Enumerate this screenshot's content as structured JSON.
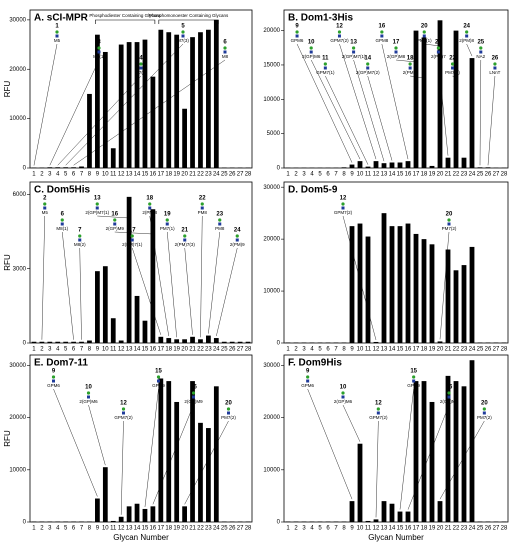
{
  "chart_data": [
    {
      "type": "bar",
      "title": "A.  sCI-MPR",
      "y_label": "RFU",
      "color": "#000000",
      "categories": [
        "1",
        "2",
        "3",
        "4",
        "5",
        "6",
        "7",
        "8",
        "9",
        "10",
        "11",
        "12",
        "13",
        "14",
        "15",
        "16",
        "17",
        "18",
        "19",
        "20",
        "21",
        "22",
        "23",
        "24",
        "25",
        "26",
        "27",
        "28"
      ],
      "values": [
        100,
        100,
        150,
        150,
        150,
        150,
        300,
        15000,
        27000,
        23500,
        4000,
        25000,
        25500,
        25500,
        26000,
        18500,
        28000,
        27500,
        27000,
        12000,
        26500,
        27500,
        28000,
        30000,
        100,
        100,
        100,
        100
      ],
      "ylim": [
        0,
        32000
      ],
      "yticks": [
        0,
        10000,
        20000,
        30000
      ],
      "notes": [
        "Phosphodiester Containing Glycans",
        "Phosphomonoester Containing Glycans"
      ],
      "annotations": [
        {
          "text": "1",
          "label": "M5"
        },
        {
          "text": "3",
          "label": "M7(1)"
        },
        {
          "text": "4",
          "label": "M7(2)"
        },
        {
          "text": "5",
          "label": "M7(3)"
        },
        {
          "text": "6",
          "label": "M8"
        }
      ]
    },
    {
      "type": "bar",
      "title": "B.  Dom1-3His",
      "color": "#000000",
      "categories": [
        "1",
        "2",
        "3",
        "4",
        "5",
        "6",
        "7",
        "8",
        "9",
        "10",
        "11",
        "12",
        "13",
        "14",
        "15",
        "16",
        "17",
        "18",
        "19",
        "20",
        "21",
        "22",
        "23",
        "24",
        "25",
        "26",
        "27",
        "28"
      ],
      "values": [
        50,
        50,
        50,
        50,
        50,
        50,
        50,
        100,
        500,
        1000,
        200,
        1000,
        700,
        800,
        800,
        1000,
        20000,
        19000,
        300,
        21500,
        1500,
        20000,
        1500,
        16000,
        100,
        100,
        50,
        50
      ],
      "ylim": [
        0,
        23000
      ],
      "yticks": [
        0,
        5000,
        10000,
        15000,
        20000
      ],
      "annotations": [
        {
          "text": "9",
          "label": "GPM6"
        },
        {
          "text": "10",
          "label": "2(GP)M6"
        },
        {
          "text": "11",
          "label": "GPM7(1)"
        },
        {
          "text": "12",
          "label": "GPM7(2)"
        },
        {
          "text": "13",
          "label": "2(GP)M7(1)"
        },
        {
          "text": "14",
          "label": "2(GP)M7(2)"
        },
        {
          "text": "16",
          "label": "GPM8"
        },
        {
          "text": "17",
          "label": "2(GP)M8"
        },
        {
          "text": "18",
          "label": "2(PM)6"
        },
        {
          "text": "20",
          "label": "PM7(1)"
        },
        {
          "text": "21",
          "label": "2(PM)7"
        },
        {
          "text": "22",
          "label": "PM7(3)"
        },
        {
          "text": "24",
          "label": "2(PM)8"
        },
        {
          "text": "25",
          "label": "NA2"
        },
        {
          "text": "26",
          "label": "LNnT"
        }
      ]
    },
    {
      "type": "bar",
      "title": "C.  Dom5His",
      "y_label": "RFU",
      "color": "#000000",
      "categories": [
        "1",
        "2",
        "3",
        "4",
        "5",
        "6",
        "7",
        "8",
        "9",
        "10",
        "11",
        "12",
        "13",
        "14",
        "15",
        "16",
        "17",
        "18",
        "19",
        "20",
        "21",
        "22",
        "23",
        "24",
        "25",
        "26",
        "27",
        "28"
      ],
      "values": [
        50,
        50,
        50,
        50,
        50,
        50,
        50,
        100,
        2900,
        3100,
        1000,
        100,
        5900,
        1900,
        900,
        5400,
        250,
        200,
        150,
        150,
        250,
        150,
        300,
        200,
        50,
        50,
        50,
        50
      ],
      "ylim": [
        0,
        6500
      ],
      "yticks": [
        0,
        3000,
        6000
      ],
      "annotations": [
        {
          "text": "2",
          "label": "M5"
        },
        {
          "text": "6",
          "label": "M8(1)"
        },
        {
          "text": "7",
          "label": "M8(2)"
        },
        {
          "text": "13",
          "label": "2(GP)M7(1)"
        },
        {
          "text": "16",
          "label": "2(GP)M9"
        },
        {
          "text": "17",
          "label": "2(PM)7(1)"
        },
        {
          "text": "18",
          "label": "2(PM)8"
        },
        {
          "text": "19",
          "label": "PM7(1)"
        },
        {
          "text": "21",
          "label": "2(PM)7(3)"
        },
        {
          "text": "22",
          "label": "PM8"
        },
        {
          "text": "23",
          "label": "PM8"
        },
        {
          "text": "24",
          "label": "2(PM)9"
        }
      ]
    },
    {
      "type": "bar",
      "title": "D.  Dom5-9",
      "color": "#000000",
      "categories": [
        "1",
        "2",
        "3",
        "4",
        "5",
        "6",
        "7",
        "8",
        "9",
        "10",
        "11",
        "12",
        "13",
        "14",
        "15",
        "16",
        "17",
        "18",
        "19",
        "20",
        "21",
        "22",
        "23",
        "24",
        "25",
        "26",
        "27",
        "28"
      ],
      "values": [
        100,
        100,
        100,
        100,
        100,
        100,
        100,
        100,
        22500,
        23000,
        20500,
        200,
        25000,
        22500,
        22500,
        23000,
        21000,
        20000,
        19000,
        300,
        18000,
        14000,
        15000,
        18500,
        100,
        100,
        100,
        100
      ],
      "ylim": [
        0,
        31000
      ],
      "yticks": [
        0,
        10000,
        20000,
        30000
      ],
      "annotations": [
        {
          "text": "12",
          "label": "GPM7(2)"
        },
        {
          "text": "20",
          "label": "PM7(2)"
        }
      ]
    },
    {
      "type": "bar",
      "title": "E.  Dom7-11",
      "y_label": "RFU",
      "x_label": "Glycan Number",
      "color": "#000000",
      "categories": [
        "1",
        "2",
        "3",
        "4",
        "5",
        "6",
        "7",
        "8",
        "9",
        "10",
        "11",
        "12",
        "13",
        "14",
        "15",
        "16",
        "17",
        "18",
        "19",
        "20",
        "21",
        "22",
        "23",
        "24",
        "25",
        "26",
        "27",
        "28"
      ],
      "values": [
        100,
        100,
        100,
        100,
        100,
        100,
        100,
        100,
        4500,
        10500,
        200,
        1000,
        3000,
        3500,
        2500,
        3000,
        27500,
        27000,
        23000,
        3000,
        27000,
        19000,
        18000,
        26000,
        100,
        100,
        100,
        100
      ],
      "ylim": [
        0,
        32000
      ],
      "yticks": [
        0,
        10000,
        20000,
        30000
      ],
      "annotations": [
        {
          "text": "9",
          "label": "GPM6"
        },
        {
          "text": "10",
          "label": "2(GP)M6"
        },
        {
          "text": "12",
          "label": "GPM7(2)"
        },
        {
          "text": "15",
          "label": "GPM9"
        },
        {
          "text": "16",
          "label": "2(GP)M9"
        },
        {
          "text": "20",
          "label": "PM7(2)"
        }
      ]
    },
    {
      "type": "bar",
      "title": "F.  Dom9His",
      "x_label": "Glycan Number",
      "color": "#000000",
      "categories": [
        "1",
        "2",
        "3",
        "4",
        "5",
        "6",
        "7",
        "8",
        "9",
        "10",
        "11",
        "12",
        "13",
        "14",
        "15",
        "16",
        "17",
        "18",
        "19",
        "20",
        "21",
        "22",
        "23",
        "24",
        "25",
        "26",
        "27",
        "28"
      ],
      "values": [
        100,
        100,
        100,
        100,
        100,
        100,
        100,
        100,
        4000,
        15000,
        200,
        500,
        4000,
        3500,
        2000,
        2000,
        27000,
        27000,
        23000,
        4000,
        28000,
        27000,
        26000,
        31000,
        100,
        100,
        100,
        100
      ],
      "ylim": [
        0,
        32000
      ],
      "yticks": [
        0,
        10000,
        20000,
        30000
      ],
      "annotations": [
        {
          "text": "9",
          "label": "GPM6"
        },
        {
          "text": "10",
          "label": "2(GP)M6"
        },
        {
          "text": "12",
          "label": "GPM7(2)"
        },
        {
          "text": "15",
          "label": "GPM9"
        },
        {
          "text": "16",
          "label": "2(GP)M9"
        },
        {
          "text": "20",
          "label": "PM7(2)"
        }
      ]
    }
  ]
}
